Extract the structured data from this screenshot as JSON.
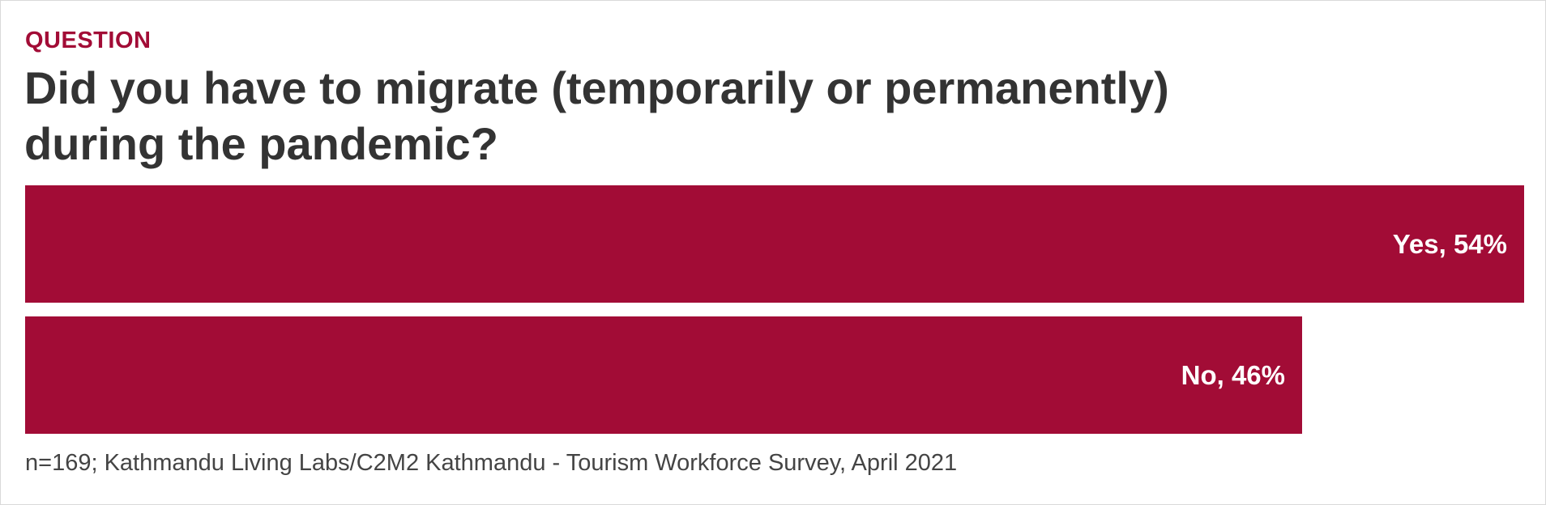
{
  "eyebrow": "QUESTION",
  "title": "Did you have to migrate (temporarily or permanently) during the pandemic?",
  "footnote": "n=169; Kathmandu Living Labs/C2M2 Kathmandu - Tourism Workforce Survey, April 2021",
  "colors": {
    "bar": "#a20c36",
    "eyebrow": "#a20c36",
    "title": "#333333",
    "footnote": "#444444",
    "bar_text": "#ffffff"
  },
  "chart_data": {
    "type": "bar",
    "orientation": "horizontal",
    "title": "Did you have to migrate (temporarily or permanently) during the pandemic?",
    "xlabel": "",
    "ylabel": "",
    "categories": [
      "Yes",
      "No"
    ],
    "values": [
      54,
      46
    ],
    "unit": "%",
    "data_labels": [
      "Yes, 54%",
      "No, 46%"
    ],
    "xlim": [
      0,
      54
    ],
    "grid": false,
    "legend": "none"
  }
}
